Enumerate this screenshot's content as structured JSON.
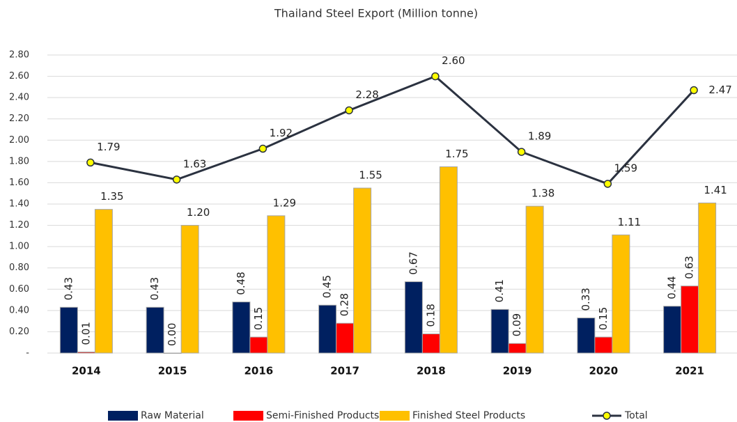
{
  "chart_data": {
    "type": "bar",
    "title": "Thailand Steel Export (Million tonne)",
    "categories": [
      "2014",
      "2015",
      "2016",
      "2017",
      "2018",
      "2019",
      "2020",
      "2021"
    ],
    "ylim": [
      0,
      2.8
    ],
    "yticks": [
      {
        "value": 0,
        "label": "-"
      },
      {
        "value": 0.2,
        "label": "0.20"
      },
      {
        "value": 0.4,
        "label": "0.40"
      },
      {
        "value": 0.6,
        "label": "0.60"
      },
      {
        "value": 0.8,
        "label": "0.80"
      },
      {
        "value": 1.0,
        "label": "1.00"
      },
      {
        "value": 1.2,
        "label": "1.20"
      },
      {
        "value": 1.4,
        "label": "1.40"
      },
      {
        "value": 1.6,
        "label": "1.60"
      },
      {
        "value": 1.8,
        "label": "1.80"
      },
      {
        "value": 2.0,
        "label": "2.00"
      },
      {
        "value": 2.2,
        "label": "2.20"
      },
      {
        "value": 2.4,
        "label": "2.40"
      },
      {
        "value": 2.6,
        "label": "2.60"
      },
      {
        "value": 2.8,
        "label": "2.80"
      }
    ],
    "grid": true,
    "legend": "bottom",
    "series": [
      {
        "name": "Raw Material",
        "color": "#002060",
        "type": "bar",
        "values": [
          0.43,
          0.43,
          0.48,
          0.45,
          0.67,
          0.41,
          0.33,
          0.44
        ],
        "value_labels": [
          "0.43",
          "0.43",
          "0.48",
          "0.45",
          "0.67",
          "0.41",
          "0.33",
          "0.44"
        ]
      },
      {
        "name": "Semi-Finished Products",
        "color": "#ff0000",
        "type": "bar",
        "values": [
          0.01,
          0,
          0.15,
          0.28,
          0.18,
          0.09,
          0.15,
          0.63
        ],
        "value_labels": [
          "0.01",
          "0.00",
          "0.15",
          "0.28",
          "0.18",
          "0.09",
          "0.15",
          "0.63"
        ]
      },
      {
        "name": "Finished Steel Products",
        "color": "#ffc000",
        "type": "bar",
        "values": [
          1.35,
          1.2,
          1.29,
          1.55,
          1.75,
          1.38,
          1.11,
          1.41
        ],
        "value_labels": [
          "1.35",
          "1.20",
          "1.29",
          "1.55",
          "1.75",
          "1.38",
          "1.11",
          "1.41"
        ]
      },
      {
        "name": "Total",
        "color": "#2b3240",
        "marker_color": "#ffff00",
        "type": "line",
        "values": [
          1.79,
          1.63,
          1.92,
          2.28,
          2.6,
          1.89,
          1.59,
          2.47
        ],
        "value_labels": [
          "1.79",
          "1.63",
          "1.92",
          "2.28",
          "2.60",
          "1.89",
          "1.59",
          "2.47"
        ]
      }
    ]
  }
}
